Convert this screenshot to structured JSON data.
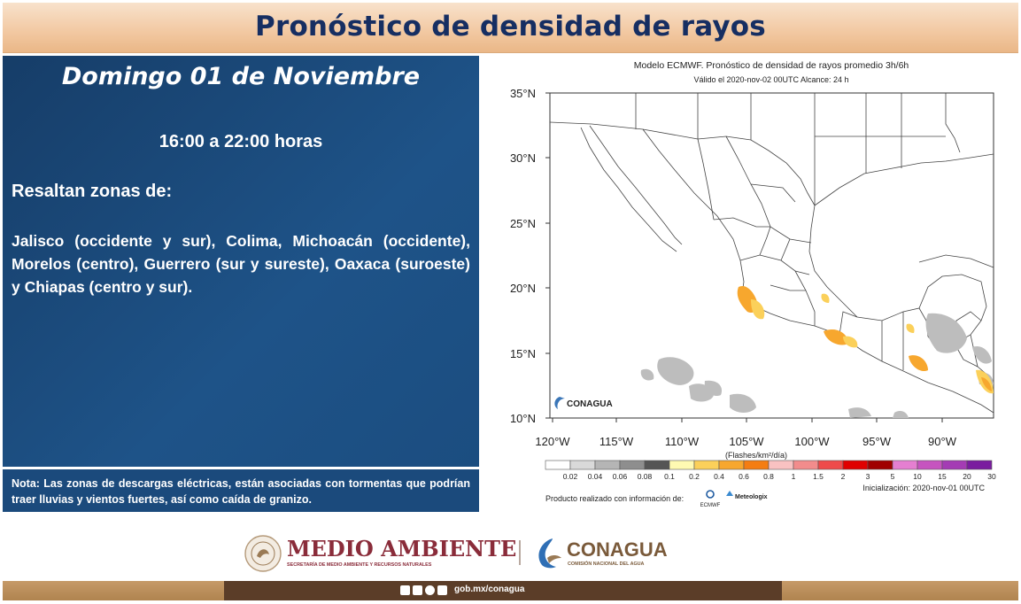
{
  "header": {
    "title": "Pronóstico de densidad de rayos"
  },
  "panel": {
    "date": "Domingo 01 de Noviembre",
    "hours": "16:00 a 22:00 horas",
    "heading": "Resaltan zonas de:",
    "zones": "Jalisco (occidente y sur), Colima, Michoacán (occidente), Morelos (centro), Guerrero (sur y sureste), Oaxaca (suroeste) y Chiapas (centro y sur).",
    "note_label": "Nota:",
    "note": "Las zonas de descargas eléctricas, están asociadas con tormentas que podrían traer lluvias y vientos fuertes, así como caída de granizo."
  },
  "map": {
    "title": "Modelo ECMWF. Pronóstico de densidad de rayos promedio 3h/6h",
    "subtitle": "Válido el 2020-nov-02 00UTC    Alcance: 24 h",
    "y_ticks": [
      "35°N",
      "30°N",
      "25°N",
      "20°N",
      "15°N",
      "10°N"
    ],
    "x_ticks": [
      "120°W",
      "115°W",
      "110°W",
      "105°W",
      "100°W",
      "95°W",
      "90°W"
    ],
    "logo_text": "CONAGUA",
    "colorbar_unit": "(Flashes/km²/día)",
    "colorbar_labels": [
      "0.02",
      "0.04",
      "0.06",
      "0.08",
      "0.1",
      "0.2",
      "0.4",
      "0.6",
      "0.8",
      "1",
      "1.5",
      "2",
      "3",
      "5",
      "10",
      "15",
      "20",
      "30"
    ],
    "colorbar_colors": [
      "#ffffff",
      "#d9d9d9",
      "#b5b5b5",
      "#8e8e8e",
      "#555555",
      "#fffab2",
      "#fbd05a",
      "#f7a72e",
      "#f47d12",
      "#f9c2c2",
      "#f28c8c",
      "#ee4b4b",
      "#e00000",
      "#a00000",
      "#e57fd1",
      "#c654bf",
      "#a43cb4",
      "#7a1d9f"
    ],
    "init_text": "Inicialización: 2020-nov-01 00UTC",
    "producer_text": "Producto realizado con información de:",
    "ecmwf_label": "ECMWF",
    "meteologix_label": "Meteologix"
  },
  "footer": {
    "ministry": "MEDIO AMBIENTE",
    "ministry_sub": "SECRETARÍA DE MEDIO AMBIENTE Y RECURSOS NATURALES",
    "agency": "CONAGUA",
    "agency_sub": "COMISIÓN NACIONAL DEL AGUA",
    "link": "gob.mx/conagua"
  },
  "colors": {
    "title": "#162e62",
    "panel_bg": "#1e5388",
    "banner_bg": "#f2c8a1",
    "ministry_text": "#8a2c3a",
    "agency_text": "#7a5a3a"
  }
}
